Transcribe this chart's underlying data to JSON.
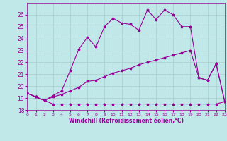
{
  "xlabel": "Windchill (Refroidissement éolien,°C)",
  "bg_color": "#c0e8e8",
  "line_color": "#990099",
  "grid_color": "#aacccc",
  "xlim": [
    0,
    23
  ],
  "ylim": [
    18,
    27
  ],
  "yticks": [
    18,
    19,
    20,
    21,
    22,
    23,
    24,
    25,
    26
  ],
  "xticks": [
    0,
    1,
    2,
    3,
    4,
    5,
    6,
    7,
    8,
    9,
    10,
    11,
    12,
    13,
    14,
    15,
    16,
    17,
    18,
    19,
    20,
    21,
    22,
    23
  ],
  "s1_x": [
    0,
    1,
    2,
    3,
    4,
    5,
    6,
    7,
    8,
    9,
    10,
    11,
    12,
    13,
    14,
    15,
    16,
    17,
    18,
    19,
    20,
    21,
    22,
    23
  ],
  "s1_y": [
    19.4,
    19.1,
    18.8,
    18.5,
    18.5,
    18.5,
    18.5,
    18.5,
    18.5,
    18.5,
    18.5,
    18.5,
    18.5,
    18.5,
    18.5,
    18.5,
    18.5,
    18.5,
    18.5,
    18.5,
    18.5,
    18.5,
    18.5,
    18.7
  ],
  "s2_x": [
    0,
    1,
    2,
    3,
    4,
    5,
    6,
    7,
    8,
    9,
    10,
    11,
    12,
    13,
    14,
    15,
    16,
    17,
    18,
    19,
    20,
    21,
    22,
    23
  ],
  "s2_y": [
    19.4,
    19.1,
    18.8,
    19.1,
    19.3,
    19.6,
    19.9,
    20.4,
    20.5,
    20.8,
    21.1,
    21.3,
    21.5,
    21.8,
    22.0,
    22.2,
    22.4,
    22.6,
    22.8,
    23.0,
    20.7,
    20.5,
    21.9,
    18.7
  ],
  "s3_x": [
    0,
    1,
    2,
    3,
    4,
    5,
    6,
    7,
    8,
    9,
    10,
    11,
    12,
    13,
    14,
    15,
    16,
    17,
    18,
    19,
    20,
    21,
    22,
    23
  ],
  "s3_y": [
    19.4,
    19.1,
    18.8,
    19.2,
    19.6,
    21.3,
    23.1,
    24.1,
    23.3,
    25.0,
    25.7,
    25.3,
    25.2,
    24.7,
    26.4,
    25.6,
    26.4,
    26.0,
    25.0,
    25.0,
    20.7,
    20.5,
    21.9,
    18.7
  ]
}
